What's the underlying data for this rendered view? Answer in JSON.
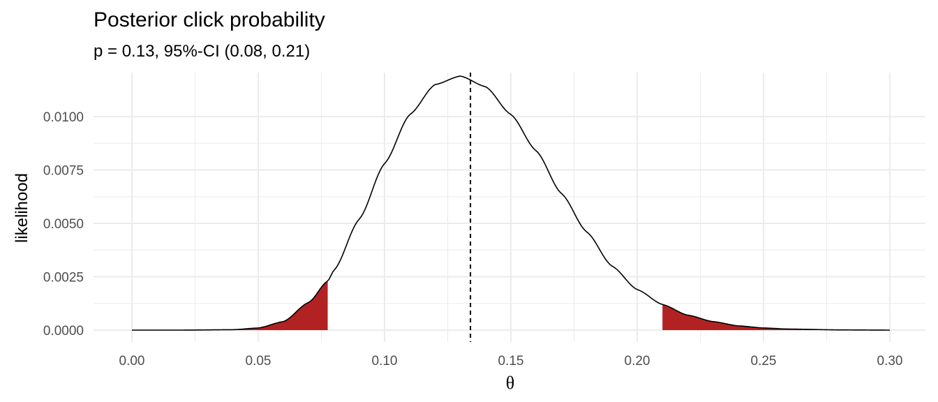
{
  "chart_data": {
    "type": "area",
    "title": "Posterior click probability",
    "subtitle": "p = 0.13, 95%-CI (0.08, 0.21)",
    "xlabel": "θ",
    "ylabel": "likelihood",
    "xlim": [
      0,
      0.3
    ],
    "ylim": [
      0,
      0.0118
    ],
    "x_ticks": [
      0.0,
      0.05,
      0.1,
      0.15,
      0.2,
      0.25,
      0.3
    ],
    "x_tick_labels": [
      "0.00",
      "0.05",
      "0.10",
      "0.15",
      "0.20",
      "0.25",
      "0.30"
    ],
    "y_ticks": [
      0.0,
      0.0025,
      0.005,
      0.0075,
      0.01
    ],
    "y_tick_labels": [
      "0.0000",
      "0.0025",
      "0.0050",
      "0.0075",
      "0.0100"
    ],
    "grid": true,
    "mode_x": 0.13,
    "mode_y": 0.0119,
    "mean_line_x": 0.134,
    "ci_lower": 0.0775,
    "ci_upper": 0.21,
    "curve_color": "#000000",
    "tail_fill_color": "#b22222",
    "mean_line_color": "#000000",
    "grid_color": "#ebebeb",
    "series": [
      {
        "x": [
          0.0,
          0.02,
          0.04,
          0.05,
          0.06,
          0.07,
          0.0775,
          0.08,
          0.09,
          0.1,
          0.11,
          0.12,
          0.13,
          0.14,
          0.15,
          0.16,
          0.17,
          0.18,
          0.19,
          0.2,
          0.21,
          0.22,
          0.23,
          0.24,
          0.25,
          0.26,
          0.28,
          0.3
        ],
        "y": [
          0.0,
          0.0,
          2e-05,
          0.0001,
          0.0004,
          0.0013,
          0.0023,
          0.0028,
          0.0052,
          0.0078,
          0.0101,
          0.0115,
          0.0119,
          0.0114,
          0.0101,
          0.0084,
          0.0064,
          0.0046,
          0.003,
          0.0019,
          0.0012,
          0.0007,
          0.0004,
          0.0002,
          0.0001,
          5e-05,
          1e-05,
          0.0
        ]
      }
    ]
  }
}
